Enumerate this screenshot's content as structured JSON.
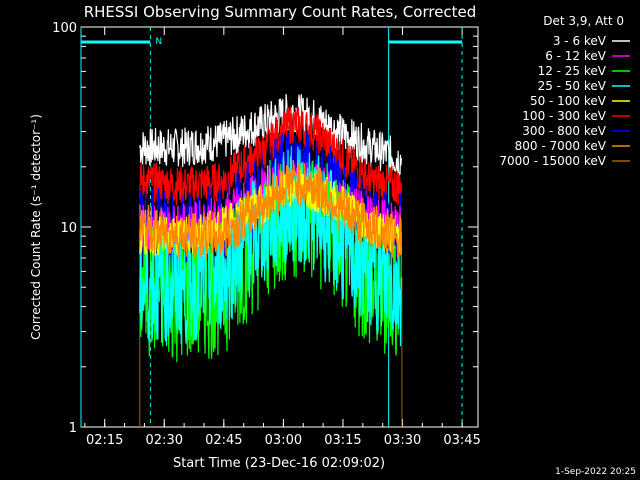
{
  "chart_data": {
    "type": "line",
    "title": "RHESSI Observing Summary Count Rates, Corrected",
    "xlabel": "Start Time (23-Dec-16 02:09:02)",
    "ylabel": "Corrected Count Rate (s⁻¹ detector⁻¹)",
    "y_scale": "log",
    "ylim": [
      1,
      100
    ],
    "xlim": [
      "02:09:02",
      "03:49:00"
    ],
    "x_ticks": [
      "02:15",
      "02:30",
      "02:45",
      "03:00",
      "03:15",
      "03:30",
      "03:45"
    ],
    "y_ticks": [
      "1",
      "10",
      "100"
    ],
    "x_start": "02:23:50",
    "x_end": "03:29:50",
    "legend_title": "Det 3,9, Att 0",
    "legend_position": "top-right",
    "series": [
      {
        "name": "3 - 6 keV",
        "color": "#ffffff",
        "x": [
          "02:24",
          "02:35",
          "02:45",
          "02:55",
          "03:02",
          "03:08",
          "03:15",
          "03:22",
          "03:29"
        ],
        "values": [
          25,
          25,
          27,
          33,
          38,
          35,
          29,
          25,
          22
        ]
      },
      {
        "name": "6 - 12 keV",
        "color": "#ff00ff",
        "x": [
          "02:24",
          "02:35",
          "02:45",
          "02:55",
          "03:02",
          "03:08",
          "03:15",
          "03:22",
          "03:29"
        ],
        "values": [
          10,
          10,
          11,
          15,
          17,
          16,
          13,
          11,
          10
        ]
      },
      {
        "name": "12 - 25 keV",
        "color": "#00ff00",
        "x": [
          "02:24",
          "02:35",
          "02:45",
          "02:55",
          "03:02",
          "03:08",
          "03:15",
          "03:22",
          "03:29"
        ],
        "values": [
          5,
          4.5,
          5,
          9,
          12,
          11,
          8,
          5,
          5
        ]
      },
      {
        "name": "25 - 50 keV",
        "color": "#00ffff",
        "x": [
          "02:24",
          "02:35",
          "02:45",
          "02:55",
          "03:02",
          "03:08",
          "03:15",
          "03:22",
          "03:29"
        ],
        "values": [
          5,
          5,
          6,
          10,
          13,
          12,
          8,
          6,
          5
        ]
      },
      {
        "name": "50 - 100 keV",
        "color": "#ffff00",
        "x": [
          "02:24",
          "02:35",
          "02:45",
          "02:55",
          "03:02",
          "03:08",
          "03:15",
          "03:22",
          "03:29"
        ],
        "values": [
          9,
          9,
          10,
          13,
          16,
          15,
          13,
          10,
          9
        ]
      },
      {
        "name": "100 - 300 keV",
        "color": "#ff0000",
        "x": [
          "02:24",
          "02:35",
          "02:45",
          "02:55",
          "03:02",
          "03:08",
          "03:15",
          "03:22",
          "03:29"
        ],
        "values": [
          17,
          16,
          17,
          24,
          33,
          30,
          22,
          17,
          16
        ]
      },
      {
        "name": "300 - 800 keV",
        "color": "#0000ff",
        "x": [
          "02:24",
          "02:35",
          "02:45",
          "02:55",
          "03:02",
          "03:08",
          "03:15",
          "03:22",
          "03:29"
        ],
        "values": [
          10,
          9,
          10,
          15,
          20,
          18,
          13,
          10,
          9
        ]
      },
      {
        "name": "800 - 7000 keV",
        "color": "#ff8800",
        "x": [
          "02:24",
          "02:35",
          "02:45",
          "02:55",
          "03:02",
          "03:08",
          "03:15",
          "03:22",
          "03:29"
        ],
        "values": [
          10,
          9,
          9,
          13,
          17,
          16,
          12,
          10,
          9
        ]
      },
      {
        "name": "7000 - 15000 keV",
        "color": "#996600",
        "x": [
          "02:24",
          "02:35",
          "02:45",
          "02:55",
          "03:02",
          "03:08",
          "03:15",
          "03:22",
          "03:29"
        ],
        "values": [
          1,
          1,
          1,
          1,
          1,
          1,
          1,
          1,
          1
        ]
      }
    ],
    "annotations": {
      "night_marker": "N",
      "night_intervals": [
        [
          "02:09:02",
          "02:26:30"
        ],
        [
          "03:26:30",
          "03:45:00"
        ]
      ],
      "dashed_lines": [
        "02:26:30",
        "03:45:00"
      ],
      "solid_lines": [
        "02:09:02",
        "03:26:30"
      ]
    }
  },
  "footer": {
    "timestamp": "1-Sep-2022 20:25"
  }
}
